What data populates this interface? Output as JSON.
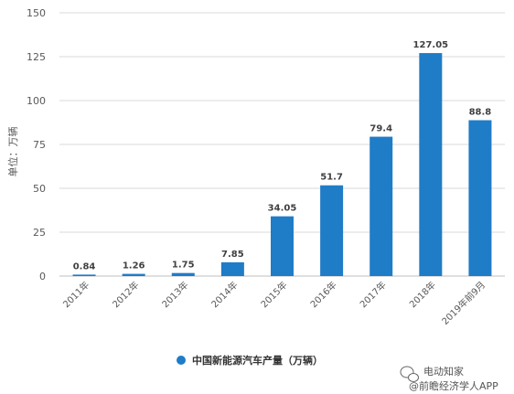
{
  "chart_data": {
    "type": "bar",
    "categories": [
      "2011年",
      "2012年",
      "2013年",
      "2014年",
      "2015年",
      "2016年",
      "2017年",
      "2018年",
      "2019年前9月"
    ],
    "series": [
      {
        "name": "中国新能源汽车产量（万辆）",
        "values": [
          0.84,
          1.26,
          1.75,
          7.85,
          34.05,
          51.7,
          79.4,
          127.05,
          88.8
        ],
        "color": "#1f7cc7"
      }
    ],
    "data_labels": [
      "0.84",
      "1.26",
      "1.75",
      "7.85",
      "34.05",
      "51.7",
      "79.4",
      "127.05",
      "88.8"
    ],
    "ylabel": "单位：万辆",
    "ylim": [
      0,
      150
    ],
    "yticks": [
      0,
      25,
      50,
      75,
      100,
      125,
      150
    ],
    "grid": true,
    "legend_position": "bottom-center"
  },
  "watermark": {
    "text": "电动知家",
    "account": "@前瞻经济学人APP"
  }
}
